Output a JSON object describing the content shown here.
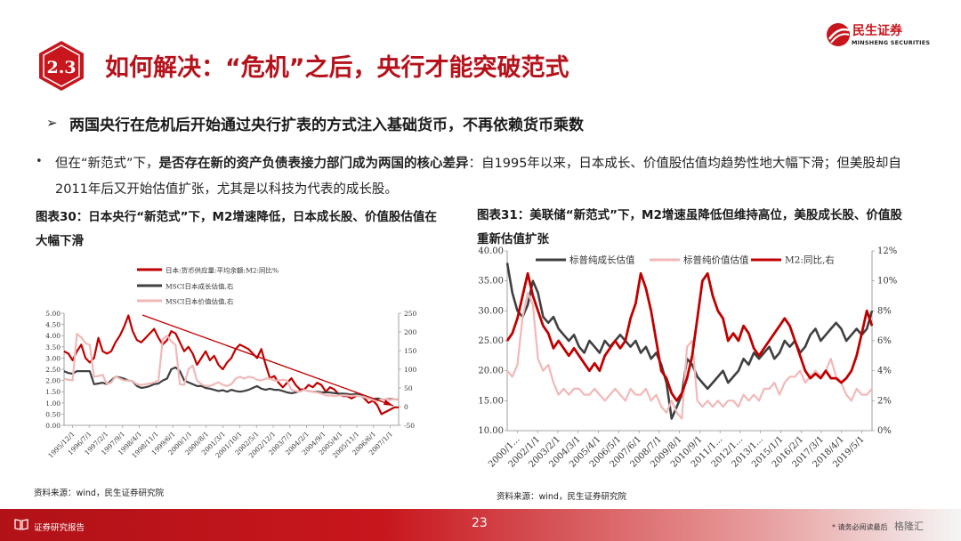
{
  "slide": {
    "badge": "2.3",
    "title": "如何解决：“危机”之后，央行才能突破范式",
    "logo_cn": "民生证券",
    "logo_en": "MINSHENG SECURITIES",
    "subhead": "两国央行在危机后开始通过央行扩表的方式注入基础货币，不再依赖货币乘数",
    "body_pre": "但在“新范式”下，",
    "body_bold": "是否存在新的资产负债表接力部门成为两国的核心差异",
    "body_post": "：自1995年以来，日本成长、价值股估值均趋势性地大幅下滑；但美股却自2011年后又开始估值扩张，尤其是以科技为代表的成长股。",
    "caption1": "图表30：日本央行“新范式”下，M2增速降低，日本成长股、价值股估值在大幅下滑",
    "caption2": "图表31：美联储“新范式”下，M2增速虽降低但维持高位，美股成长股、价值股重新估值扩张",
    "source1": "资料来源：wind，民生证券研究院",
    "source2": "资料来源：wind，民生证券研究院",
    "footer_label": "证券研究报告",
    "page_number": "23",
    "disclaimer": "* 请务必阅读最后",
    "watermark": "格隆汇",
    "colors": {
      "brand_red": "#c8161d",
      "m2": "#c00000",
      "growth": "#404040",
      "value": "#f2b8b8"
    }
  },
  "chart_data": [
    {
      "type": "line",
      "title": "",
      "legend": [
        "日本:货币供应量:平均余额:M2:同比%",
        "MSCI日本成长估值,右",
        "MSCI日本价值估值,右"
      ],
      "legend_position": "top-left",
      "y_left": {
        "ticks": [
          "5.00",
          "4.50",
          "4.00",
          "3.50",
          "3.00",
          "2.50",
          "2.00",
          "1.50",
          "1.00",
          "0.50",
          "0.00"
        ],
        "range": [
          0,
          5
        ]
      },
      "y_right": {
        "ticks": [
          "250",
          "200",
          "150",
          "100",
          "50",
          "0",
          "-50"
        ],
        "range": [
          -50,
          250
        ]
      },
      "x_ticks": [
        "1995/12/1",
        "1996/7/1",
        "1997/2/1",
        "1997/9/1",
        "1998/4/1",
        "1998/11/1",
        "1999/6/1",
        "2000/1/1",
        "2000/8/1",
        "2001/3/1",
        "2001/10/1",
        "2002/5/1",
        "2002/12/1",
        "2003/7/1",
        "2004/2/1",
        "2004/9/1",
        "2005/4/1",
        "2005/11/1",
        "2006/6/1",
        "2007/1/1"
      ],
      "series": [
        {
          "name": "日本:货币供应量:平均余额:M2:同比%",
          "axis": "left",
          "values": [
            3.3,
            3.2,
            2.9,
            3.3,
            3.6,
            3.0,
            2.8,
            3.0,
            3.9,
            3.3,
            3.2,
            3.3,
            3.7,
            4.0,
            4.4,
            4.9,
            4.2,
            3.8,
            3.7,
            3.9,
            4.1,
            4.3,
            3.9,
            3.6,
            3.8,
            4.2,
            4.1,
            3.7,
            3.3,
            3.5,
            3.2,
            2.7,
            3.0,
            3.3,
            2.9,
            3.1,
            2.7,
            2.5,
            2.8,
            3.0,
            3.4,
            3.6,
            3.5,
            3.4,
            3.2,
            3.0,
            3.4,
            2.7,
            2.1,
            2.2,
            1.9,
            1.7,
            1.9,
            2.1,
            1.8,
            1.6,
            1.6,
            1.8,
            1.7,
            1.9,
            1.8,
            1.5,
            1.7,
            1.6,
            1.4,
            1.3,
            1.3,
            1.2,
            1.3,
            1.4,
            1.2,
            1.0,
            1.1,
            0.9,
            0.5,
            0.6,
            0.7,
            0.8,
            0.8
          ]
        },
        {
          "name": "MSCI日本成长估值,右",
          "axis": "right",
          "values": [
            95,
            90,
            88,
            95,
            95,
            95,
            95,
            60,
            62,
            64,
            60,
            70,
            80,
            78,
            75,
            70,
            68,
            55,
            50,
            52,
            55,
            60,
            62,
            70,
            75,
            100,
            105,
            95,
            70,
            65,
            60,
            55,
            55,
            50,
            48,
            45,
            42,
            44,
            40,
            45,
            42,
            40,
            42,
            45,
            50,
            55,
            48,
            45,
            48,
            45,
            45,
            42,
            38,
            36,
            38,
            42,
            45,
            42,
            40,
            40,
            38,
            38,
            38,
            36,
            35,
            35,
            34,
            32,
            34,
            30,
            25,
            22,
            20,
            22,
            20,
            20,
            20,
            20,
            20
          ]
        },
        {
          "name": "MSCI日本价值估值,右",
          "axis": "right",
          "values": [
            75,
            72,
            70,
            195,
            185,
            170,
            165,
            80,
            82,
            85,
            60,
            65,
            80,
            75,
            70,
            70,
            68,
            60,
            58,
            60,
            62,
            65,
            70,
            180,
            190,
            175,
            165,
            60,
            58,
            100,
            110,
            70,
            60,
            55,
            55,
            60,
            65,
            58,
            55,
            60,
            75,
            80,
            75,
            80,
            78,
            72,
            70,
            75,
            75,
            70,
            70,
            72,
            70,
            45,
            42,
            40,
            45,
            42,
            40,
            38,
            35,
            30,
            30,
            28,
            30,
            30,
            30,
            28,
            30,
            28,
            25,
            22,
            18,
            15,
            20,
            20,
            18,
            20,
            20
          ]
        }
      ],
      "annotation": "trend-arrow"
    },
    {
      "type": "line",
      "title": "",
      "legend": [
        "标普纯成长估值",
        "标普纯价值估值",
        "M2:同比,右"
      ],
      "legend_position": "top",
      "y_left": {
        "ticks": [
          "40.00",
          "35.00",
          "30.00",
          "25.00",
          "20.00",
          "15.00",
          "10.00"
        ],
        "range": [
          10,
          40
        ]
      },
      "y_right": {
        "ticks": [
          "12%",
          "10%",
          "8%",
          "6%",
          "4%",
          "2%",
          "0%"
        ],
        "range": [
          0,
          12
        ]
      },
      "x_ticks": [
        "2000/1...",
        "2002/1/1",
        "2003/2/1",
        "2004/3/1",
        "2005/4/1",
        "2006/5/1",
        "2007/6/1",
        "2008/7/1",
        "2009/8/1",
        "2010/9/1",
        "2011/1...",
        "2012/1...",
        "2013/1...",
        "2015/1/1",
        "2016/2/1",
        "2017/3/1",
        "2018/4/1",
        "2019/5/1"
      ],
      "series": [
        {
          "name": "标普纯成长估值",
          "axis": "left",
          "values": [
            38,
            33,
            30,
            29,
            31,
            35,
            33,
            29,
            28,
            29,
            27,
            26,
            25,
            26,
            24,
            23,
            25,
            24,
            23,
            25,
            24,
            25,
            26,
            25,
            24,
            25,
            23,
            24,
            22,
            23,
            21,
            18,
            12,
            14,
            16,
            22,
            21,
            19,
            18,
            17,
            18,
            19,
            20,
            18,
            19,
            20,
            22,
            21,
            23,
            22,
            23,
            24,
            22,
            23,
            25,
            24,
            25,
            23,
            24,
            26,
            27,
            25,
            26,
            27,
            28,
            27,
            25,
            26,
            27,
            26,
            27,
            30
          ]
        },
        {
          "name": "标普纯价值估值",
          "axis": "left",
          "values": [
            20,
            19,
            21,
            29,
            33,
            31,
            22,
            20,
            21,
            18,
            16,
            17,
            16,
            17,
            17,
            16,
            16,
            17,
            16,
            15,
            16,
            17,
            16,
            15,
            17,
            16,
            16,
            17,
            15,
            16,
            14,
            13,
            15,
            13,
            12,
            24,
            25,
            15,
            14,
            15,
            14,
            15,
            14,
            15,
            15,
            14,
            16,
            15,
            16,
            15,
            17,
            17,
            18,
            16,
            18,
            19,
            19,
            20,
            18,
            19,
            20,
            19,
            20,
            22,
            19,
            18,
            16,
            15,
            17,
            16,
            16,
            17
          ]
        },
        {
          "name": "M2:同比,右",
          "axis": "right",
          "values": [
            6.0,
            6.5,
            7.5,
            9.0,
            10.5,
            9.0,
            8.0,
            7.0,
            6.5,
            5.5,
            6.0,
            5.5,
            5.0,
            5.5,
            5.0,
            4.5,
            4.0,
            4.5,
            4.0,
            5.0,
            5.5,
            6.0,
            5.5,
            6.0,
            7.5,
            8.5,
            10.5,
            9.5,
            8.0,
            6.0,
            4.0,
            3.5,
            2.5,
            2.0,
            2.5,
            3.5,
            5.0,
            7.5,
            10.0,
            10.5,
            9.0,
            8.0,
            7.5,
            6.0,
            6.5,
            6.0,
            7.0,
            6.5,
            5.5,
            5.0,
            5.5,
            6.0,
            6.5,
            7.0,
            7.5,
            7.0,
            6.0,
            5.0,
            4.0,
            3.5,
            3.8,
            3.5,
            4.0,
            3.5,
            3.5,
            3.2,
            3.5,
            4.0,
            5.0,
            6.5,
            8.0,
            7.0
          ]
        }
      ]
    }
  ]
}
